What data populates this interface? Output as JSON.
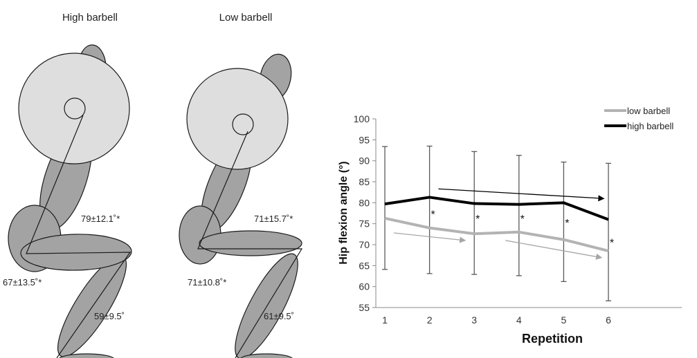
{
  "diagrams": {
    "high": {
      "title": "High barbell",
      "hip_angle": "79±12.1˚*",
      "knee_angle": "67±13.5˚*",
      "ankle_angle": "59±9.5˚"
    },
    "low": {
      "title": "Low barbell",
      "hip_angle": "71±15.7˚*",
      "knee_angle": "71±10.8˚*",
      "ankle_angle": "61±9.5˚"
    }
  },
  "colors": {
    "body_fill": "#a3a3a3",
    "plate_fill": "#dedede",
    "outline": "#1a1a1a",
    "low_series": "#b3b3b3",
    "high_series": "#000000",
    "error_bar": "#595959",
    "axis": "#888888"
  },
  "chart_data": {
    "type": "line",
    "xlabel": "Repetition",
    "ylabel": "Hip flexion angle (°)",
    "x": [
      1,
      2,
      3,
      4,
      5,
      6
    ],
    "ylim": [
      55,
      100
    ],
    "yticks": [
      55,
      60,
      65,
      70,
      75,
      80,
      85,
      90,
      95,
      100
    ],
    "grid": false,
    "legend_position": "top-right",
    "series": [
      {
        "name": "low barbell",
        "color": "#b3b3b3",
        "values": [
          76.3,
          74.0,
          72.6,
          73.0,
          71.2,
          68.5
        ]
      },
      {
        "name": "high barbell",
        "color": "#000000",
        "values": [
          79.7,
          81.3,
          79.8,
          79.6,
          80.0,
          76.0
        ]
      }
    ],
    "error_bars": [
      {
        "x": 1,
        "upper": 93.4,
        "lower": 64.1
      },
      {
        "x": 2,
        "upper": 93.5,
        "lower": 63.1
      },
      {
        "x": 3,
        "upper": 92.2,
        "lower": 62.9
      },
      {
        "x": 4,
        "upper": 91.3,
        "lower": 62.6
      },
      {
        "x": 5,
        "upper": 89.7,
        "lower": 61.2
      },
      {
        "x": 6,
        "upper": 89.4,
        "lower": 56.6
      }
    ],
    "significance_markers": [
      {
        "x": 2,
        "y": 77.3,
        "label": "*"
      },
      {
        "x": 3,
        "y": 76.3,
        "label": "*"
      },
      {
        "x": 4,
        "y": 76.3,
        "label": "*"
      },
      {
        "x": 5,
        "y": 75.3,
        "label": "*"
      },
      {
        "x": 6,
        "y": 70.6,
        "label": "*"
      }
    ],
    "trend_arrows": [
      {
        "color": "#000000",
        "from": [
          2.2,
          83.3
        ],
        "to": [
          5.9,
          81.0
        ]
      },
      {
        "color": "#a6a6a6",
        "from": [
          1.2,
          72.8
        ],
        "to": [
          2.8,
          71.0
        ]
      },
      {
        "color": "#a6a6a6",
        "from": [
          3.7,
          71.0
        ],
        "to": [
          5.85,
          66.9
        ]
      }
    ]
  }
}
